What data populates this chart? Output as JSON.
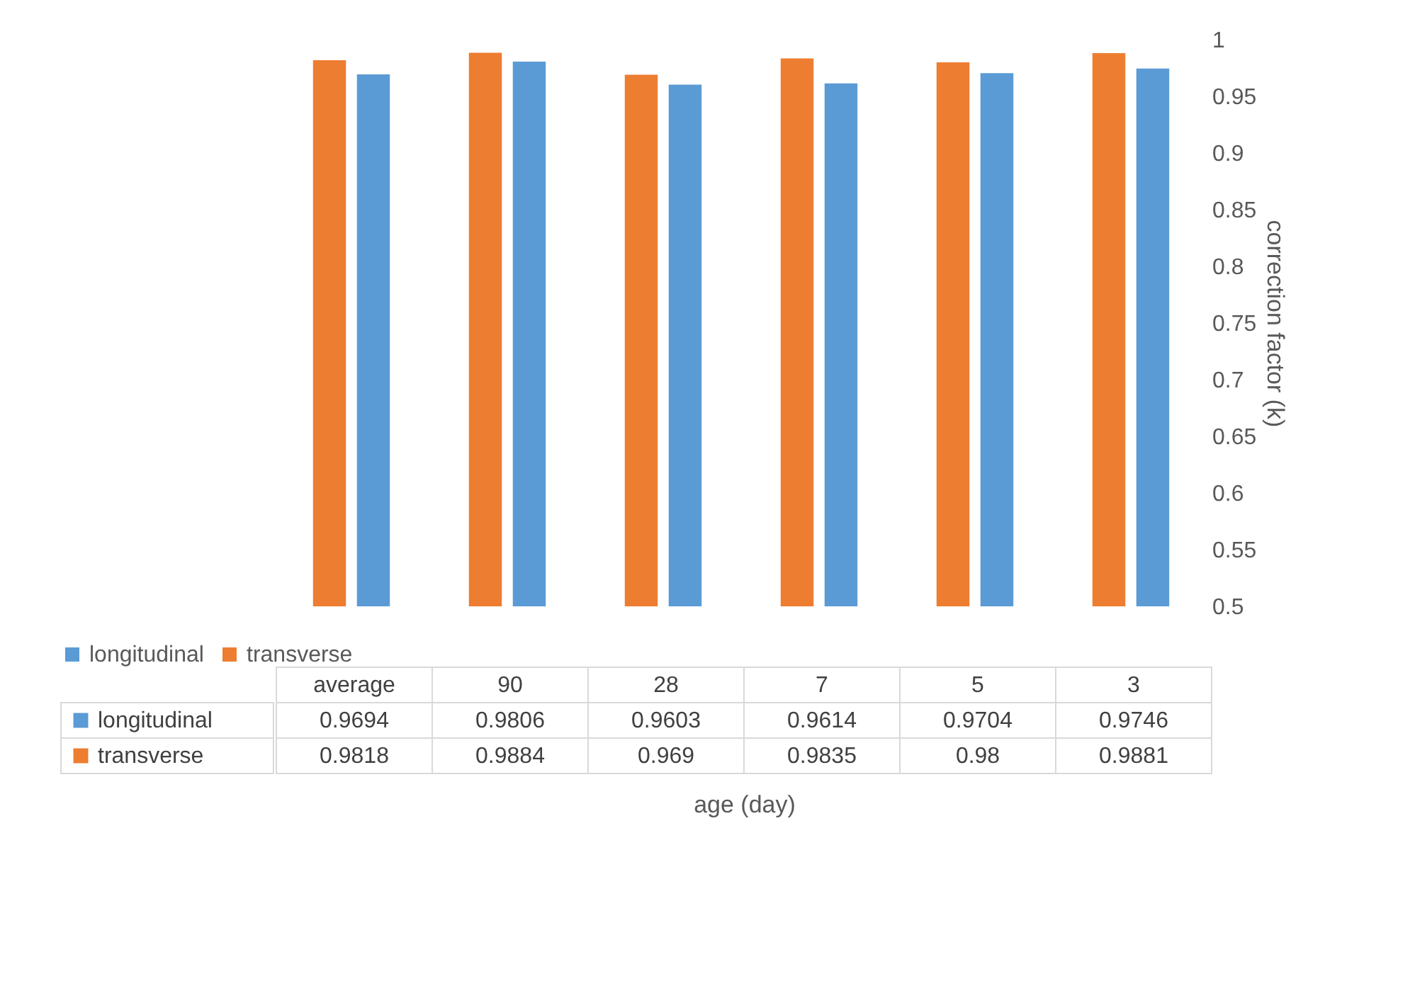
{
  "chart_data": {
    "type": "bar",
    "xlabel": "age (day)",
    "ylabel": "correction factor (k)",
    "categories": [
      "average",
      "90",
      "28",
      "7",
      "5",
      "3"
    ],
    "series": [
      {
        "name": "longitudinal",
        "color": "#5b9bd5",
        "values": [
          0.9694,
          0.9806,
          0.9603,
          0.9614,
          0.9704,
          0.9746
        ]
      },
      {
        "name": "transverse",
        "color": "#ed7d31",
        "values": [
          0.9818,
          0.9884,
          0.969,
          0.9835,
          0.98,
          0.9881
        ]
      }
    ],
    "ylim": [
      0.5,
      1
    ],
    "yticks": [
      0.5,
      0.55,
      0.6,
      0.65,
      0.7,
      0.75,
      0.8,
      0.85,
      0.9,
      0.95,
      1
    ],
    "grid": false,
    "legend": "bottom",
    "data_labels": true
  }
}
